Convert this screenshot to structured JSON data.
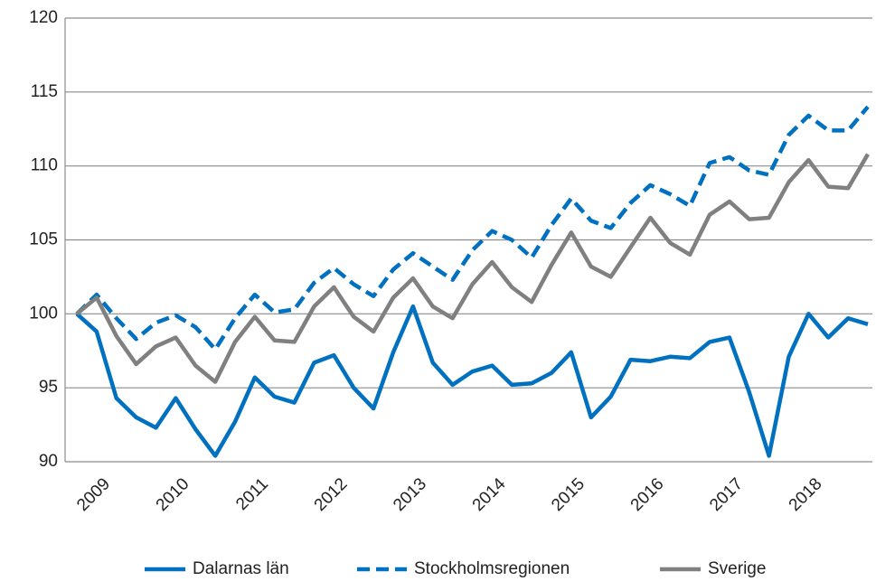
{
  "chart_data": {
    "type": "line",
    "categories": [
      null,
      "2009",
      null,
      null,
      null,
      "2010",
      null,
      null,
      null,
      "2011",
      null,
      null,
      null,
      "2012",
      null,
      null,
      null,
      "2013",
      null,
      null,
      null,
      "2014",
      null,
      null,
      null,
      "2015",
      null,
      null,
      null,
      "2016",
      null,
      null,
      null,
      "2017",
      null,
      null,
      null,
      "2018",
      null,
      null,
      null
    ],
    "series": [
      {
        "name": "Dalarnas län",
        "color": "#0070c0",
        "style": "solid",
        "values": [
          100,
          98.8,
          94.3,
          93,
          92.3,
          94.3,
          92.2,
          90.4,
          92.7,
          95.7,
          94.4,
          94,
          96.7,
          97.2,
          95,
          93.6,
          97.4,
          100.5,
          96.7,
          95.2,
          96.1,
          96.5,
          95.2,
          95.3,
          96,
          97.4,
          93,
          94.4,
          96.9,
          96.8,
          97.1,
          97,
          98.1,
          98.4,
          94.7,
          90.4,
          97.1,
          100,
          98.4,
          99.7,
          99.3
        ]
      },
      {
        "name": "Stockholmsregionen",
        "color": "#0070c0",
        "style": "dashed",
        "values": [
          100,
          101.3,
          99.7,
          98.3,
          99.4,
          99.9,
          99.1,
          97.6,
          99.7,
          101.3,
          100.1,
          100.3,
          102.1,
          103.1,
          102,
          101.2,
          103,
          104.1,
          103.2,
          102.3,
          104.3,
          105.6,
          105,
          103.8,
          106,
          107.8,
          106.3,
          105.8,
          107.5,
          108.7,
          108.1,
          107.3,
          110.2,
          110.6,
          109.7,
          109.4,
          112.1,
          113.4,
          112.4,
          112.4,
          114
        ]
      },
      {
        "name": "Sverige",
        "color": "#808080",
        "style": "solid",
        "values": [
          100,
          101.1,
          98.5,
          96.6,
          97.8,
          98.4,
          96.5,
          95.4,
          98.1,
          99.8,
          98.2,
          98.1,
          100.5,
          101.8,
          99.8,
          98.8,
          101.1,
          102.4,
          100.5,
          99.7,
          102,
          103.5,
          101.8,
          100.8,
          103.3,
          105.5,
          103.2,
          102.5,
          104.5,
          106.5,
          104.8,
          104,
          106.7,
          107.6,
          106.4,
          106.5,
          108.9,
          110.4,
          108.6,
          108.5,
          110.8
        ]
      }
    ],
    "ylim": [
      90,
      120
    ],
    "yticks": [
      90,
      95,
      100,
      105,
      110,
      115,
      120
    ],
    "grid": true,
    "legend": "bottom"
  }
}
